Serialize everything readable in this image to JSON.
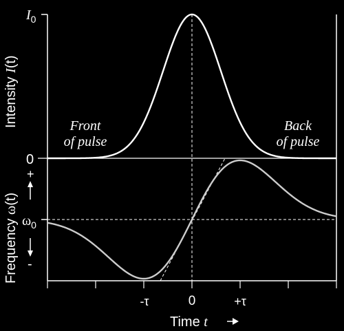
{
  "labels": {
    "intensity_axis": "Intensity",
    "intensity_symbol": "I",
    "intensity_arg": "(t)",
    "i0_base": "I",
    "i0_sub": "0",
    "zero_level": "0",
    "front_line1": "Front",
    "front_line2": "of pulse",
    "back_line1": "Back",
    "back_line2": "of pulse",
    "frequency_axis": "Frequency",
    "frequency_symbol": "ω",
    "frequency_arg": "(t)",
    "omega0_base": "ω",
    "omega0_sub": "0",
    "plus": "+",
    "minus": "-",
    "tick_neg_tau": "-τ",
    "tick_zero": "0",
    "tick_pos_tau": "+τ",
    "x_axis": "Time",
    "x_axis_symbol": "t"
  },
  "colors": {
    "background": "#000000",
    "intensity_curve": "#ffffff",
    "frequency_curve": "#cccccc",
    "axes": "#ffffff"
  }
}
